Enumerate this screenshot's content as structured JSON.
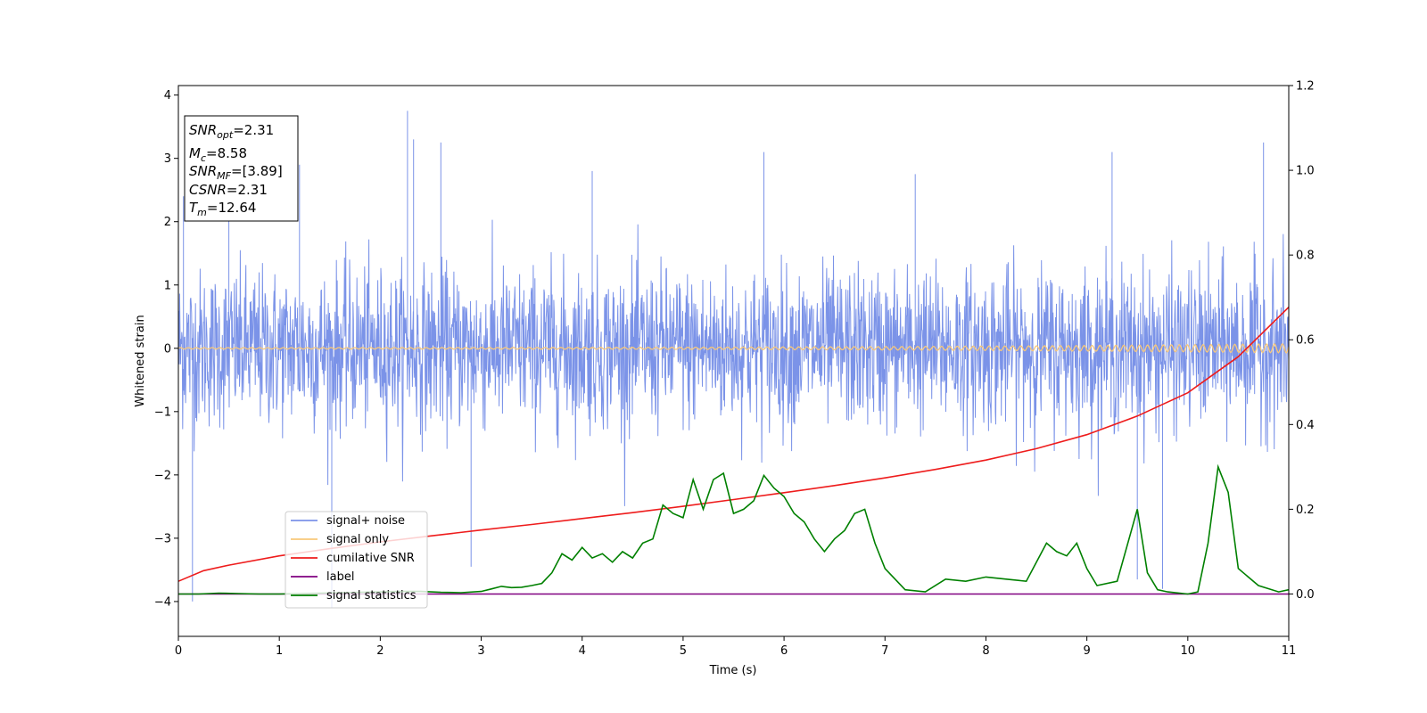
{
  "chart_data": {
    "type": "line",
    "xlabel": "Time (s)",
    "ylabel": "Whitened strain",
    "xlim": [
      0,
      11
    ],
    "ylim": [
      -4.55,
      4.15
    ],
    "y2lim": [
      -0.1,
      1.2
    ],
    "grid": false,
    "legend_position": "lower-left",
    "x_ticks": [
      0,
      1,
      2,
      3,
      4,
      5,
      6,
      7,
      8,
      9,
      10,
      11
    ],
    "x_tick_labels": [
      "0",
      "1",
      "2",
      "3",
      "4",
      "5",
      "6",
      "7",
      "8",
      "9",
      "10",
      "11"
    ],
    "y_ticks": [
      4,
      3,
      2,
      1,
      0,
      -1,
      -2,
      -3,
      -4
    ],
    "y_tick_labels": [
      "4",
      "3",
      "2",
      "1",
      "0",
      "−1",
      "−2",
      "−3",
      "−4"
    ],
    "y2_ticks": [
      1.2,
      1.0,
      0.8,
      0.6,
      0.4,
      0.2,
      0.0
    ],
    "y2_tick_labels": [
      "1.2",
      "1.0",
      "0.8",
      "0.6",
      "0.4",
      "0.2",
      "0.0"
    ],
    "info_box": {
      "snr_opt": {
        "main": "SNR",
        "sub": "opt",
        "value": "=2.31"
      },
      "mc": {
        "main": "M",
        "sub": "c",
        "value": "=8.58"
      },
      "snr_mf": {
        "main": "SNR",
        "sub": "MF",
        "value": "=[3.89]"
      },
      "csnr": {
        "main": "CSNR",
        "sub": "",
        "value": "=2.31"
      },
      "tm": {
        "main": "T",
        "sub": "m",
        "value": "=12.64"
      }
    },
    "series": [
      {
        "name": "signal+ noise",
        "color": "#7b93e8",
        "axis": "left",
        "description": "noise band, roughly ±1.3 with spikes",
        "spikes": [
          [
            0.05,
            2.4
          ],
          [
            0.14,
            -4.0
          ],
          [
            0.5,
            3.0
          ],
          [
            1.2,
            2.9
          ],
          [
            1.52,
            -4.1
          ],
          [
            2.27,
            3.75
          ],
          [
            2.33,
            3.3
          ],
          [
            2.6,
            3.25
          ],
          [
            2.9,
            -3.45
          ],
          [
            4.1,
            2.8
          ],
          [
            5.8,
            3.1
          ],
          [
            7.3,
            2.75
          ],
          [
            9.25,
            3.1
          ],
          [
            9.5,
            -3.65
          ],
          [
            9.75,
            -3.8
          ],
          [
            10.75,
            3.25
          ]
        ]
      },
      {
        "name": "signal only",
        "color": "#f8c87a",
        "axis": "left",
        "values_description": "near zero, amplitude growing slightly toward the end",
        "amplitude_end": 0.06
      },
      {
        "name": "cumilative SNR",
        "color": "#ee1c1c",
        "axis": "right",
        "x": [
          0,
          0.25,
          0.5,
          1,
          1.5,
          2,
          2.5,
          3,
          3.5,
          4,
          4.5,
          5,
          5.5,
          6,
          6.5,
          7,
          7.5,
          8,
          8.5,
          9,
          9.5,
          10,
          10.5,
          11
        ],
        "y": [
          0.03,
          0.055,
          0.068,
          0.09,
          0.107,
          0.123,
          0.137,
          0.151,
          0.164,
          0.178,
          0.192,
          0.207,
          0.223,
          0.239,
          0.256,
          0.274,
          0.294,
          0.316,
          0.343,
          0.376,
          0.42,
          0.475,
          0.56,
          0.677
        ]
      },
      {
        "name": "label",
        "color": "#800080",
        "axis": "right",
        "x": [
          0,
          11
        ],
        "y": [
          0,
          0
        ]
      },
      {
        "name": "signal statistics",
        "color": "#008000",
        "axis": "right",
        "x": [
          0,
          0.2,
          0.4,
          0.6,
          0.8,
          1.0,
          1.2,
          1.4,
          1.6,
          1.8,
          2.0,
          2.2,
          2.4,
          2.6,
          2.8,
          3.0,
          3.1,
          3.2,
          3.3,
          3.4,
          3.5,
          3.6,
          3.7,
          3.8,
          3.9,
          4.0,
          4.1,
          4.2,
          4.3,
          4.4,
          4.5,
          4.6,
          4.7,
          4.8,
          4.9,
          5.0,
          5.1,
          5.2,
          5.3,
          5.4,
          5.5,
          5.6,
          5.7,
          5.8,
          5.9,
          6.0,
          6.1,
          6.2,
          6.3,
          6.4,
          6.5,
          6.6,
          6.7,
          6.8,
          6.9,
          7.0,
          7.2,
          7.4,
          7.6,
          7.8,
          8.0,
          8.2,
          8.4,
          8.6,
          8.7,
          8.8,
          8.9,
          9.0,
          9.1,
          9.3,
          9.5,
          9.6,
          9.7,
          9.8,
          10.0,
          10.1,
          10.2,
          10.3,
          10.4,
          10.5,
          10.7,
          10.9,
          11.0
        ],
        "y": [
          0.0,
          0.0,
          0.002,
          0.001,
          0.0,
          0.0,
          0.001,
          0.002,
          0.003,
          0.004,
          0.005,
          0.006,
          0.006,
          0.004,
          0.003,
          0.006,
          0.012,
          0.018,
          0.015,
          0.016,
          0.02,
          0.025,
          0.05,
          0.095,
          0.08,
          0.11,
          0.085,
          0.095,
          0.075,
          0.1,
          0.085,
          0.12,
          0.13,
          0.21,
          0.19,
          0.18,
          0.27,
          0.2,
          0.27,
          0.285,
          0.19,
          0.2,
          0.22,
          0.28,
          0.25,
          0.23,
          0.19,
          0.17,
          0.13,
          0.1,
          0.13,
          0.15,
          0.19,
          0.2,
          0.12,
          0.06,
          0.01,
          0.005,
          0.035,
          0.03,
          0.04,
          0.035,
          0.03,
          0.12,
          0.1,
          0.09,
          0.12,
          0.06,
          0.02,
          0.03,
          0.2,
          0.05,
          0.01,
          0.005,
          0.0,
          0.005,
          0.12,
          0.3,
          0.24,
          0.06,
          0.02,
          0.005,
          0.01
        ]
      }
    ]
  }
}
